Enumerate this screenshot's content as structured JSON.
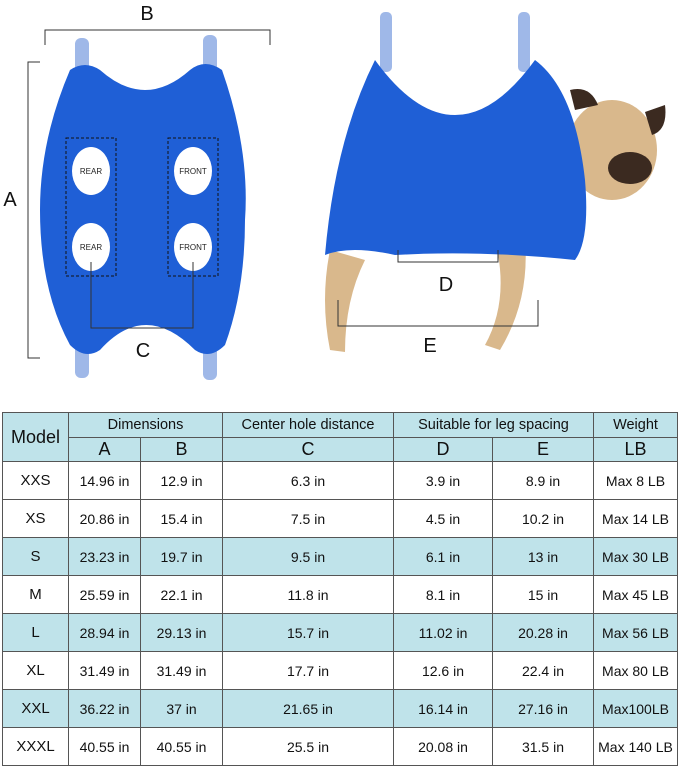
{
  "diagram": {
    "labels": {
      "a": "A",
      "b": "B",
      "c": "C",
      "d": "D",
      "e": "E"
    },
    "hole_labels": [
      "REAR",
      "FRONT",
      "REAR",
      "FRONT"
    ],
    "colors": {
      "harness": "#1f5fd6",
      "strap": "#9fb8e8",
      "dog": "#d9b88c"
    }
  },
  "table": {
    "headers": {
      "model": "Model",
      "dimensions": "Dimensions",
      "center": "Center hole distance",
      "leg": "Suitable for leg spacing",
      "weight": "Weight",
      "sub": [
        "A",
        "B",
        "C",
        "D",
        "E",
        "LB"
      ]
    },
    "rows": [
      [
        "XXS",
        "14.96 in",
        "12.9 in",
        "6.3 in",
        "3.9 in",
        "8.9 in",
        "Max 8 LB"
      ],
      [
        "XS",
        "20.86 in",
        "15.4 in",
        "7.5 in",
        "4.5 in",
        "10.2 in",
        "Max 14 LB"
      ],
      [
        "S",
        "23.23 in",
        "19.7 in",
        "9.5 in",
        "6.1 in",
        "13 in",
        "Max 30 LB"
      ],
      [
        "M",
        "25.59 in",
        "22.1 in",
        "11.8 in",
        "8.1 in",
        "15 in",
        "Max 45 LB"
      ],
      [
        "L",
        "28.94 in",
        "29.13 in",
        "15.7 in",
        "11.02 in",
        "20.28 in",
        "Max 56 LB"
      ],
      [
        "XL",
        "31.49 in",
        "31.49 in",
        "17.7 in",
        "12.6 in",
        "22.4 in",
        "Max 80 LB"
      ],
      [
        "XXL",
        "36.22 in",
        "37 in",
        "21.65 in",
        "16.14 in",
        "27.16 in",
        "Max100LB"
      ],
      [
        "XXXL",
        "40.55 in",
        "40.55 in",
        "25.5 in",
        "20.08 in",
        "31.5 in",
        "Max 140 LB"
      ]
    ],
    "shaded_rows": [
      "S",
      "L",
      "XXL"
    ],
    "header_color": "#bfe3ea"
  }
}
